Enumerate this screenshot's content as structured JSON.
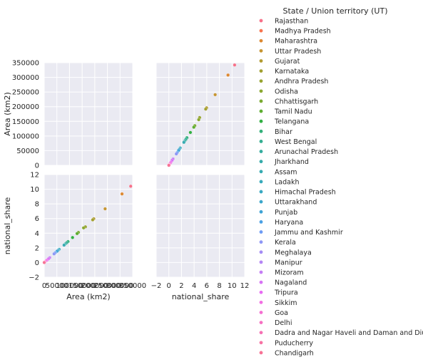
{
  "chart_data": {
    "type": "scatter",
    "kind": "pairplot",
    "variables": [
      "Area (km2)",
      "national_share"
    ],
    "diagonal_panels": "empty",
    "legend": {
      "title": "State / Union territory (UT)",
      "placement": "right"
    },
    "grid": true,
    "axes": {
      "Area (km2)": {
        "label": "Area (km2)",
        "range": [
          0,
          350000
        ],
        "ticks": [
          0,
          50000,
          100000,
          150000,
          200000,
          250000,
          300000,
          350000
        ],
        "tick_labels": [
          "0",
          "50000",
          "100000",
          "150000",
          "200000",
          "250000",
          "300000",
          "350000"
        ]
      },
      "national_share": {
        "label": "national_share",
        "range": [
          -2,
          12
        ],
        "ticks": [
          -2,
          0,
          2,
          4,
          6,
          8,
          10,
          12
        ],
        "tick_labels": [
          "−2",
          "0",
          "2",
          "4",
          "6",
          "8",
          "10",
          "12"
        ]
      }
    },
    "series": [
      {
        "name": "Rajasthan",
        "color": "#f77189",
        "area": 342239,
        "share": 10.41
      },
      {
        "name": "Madhya Pradesh",
        "color": "#f7754f",
        "area": 308252,
        "share": 9.38
      },
      {
        "name": "Maharashtra",
        "color": "#dc8932",
        "area": 307713,
        "share": 9.36
      },
      {
        "name": "Uttar Pradesh",
        "color": "#c69532",
        "area": 240928,
        "share": 7.33
      },
      {
        "name": "Gujarat",
        "color": "#b29b31",
        "area": 196024,
        "share": 5.97
      },
      {
        "name": "Karnataka",
        "color": "#a2a031",
        "area": 191791,
        "share": 5.83
      },
      {
        "name": "Andhra Pradesh",
        "color": "#97a431",
        "area": 162968,
        "share": 4.87
      },
      {
        "name": "Odisha",
        "color": "#8ba831",
        "area": 155707,
        "share": 4.73
      },
      {
        "name": "Chhattisgarh",
        "color": "#7aaa31",
        "area": 135191,
        "share": 4.11
      },
      {
        "name": "Tamil Nadu",
        "color": "#5eae31",
        "area": 130058,
        "share": 3.95
      },
      {
        "name": "Telangana",
        "color": "#32b043",
        "area": 112077,
        "share": 3.41
      },
      {
        "name": "Bihar",
        "color": "#33b07a",
        "area": 94163,
        "share": 2.86
      },
      {
        "name": "West Bengal",
        "color": "#34ae91",
        "area": 88752,
        "share": 2.7
      },
      {
        "name": "Arunachal Pradesh",
        "color": "#35ad9f",
        "area": 83743,
        "share": 2.54
      },
      {
        "name": "Jharkhand",
        "color": "#36abaa",
        "area": 79716,
        "share": 2.42
      },
      {
        "name": "Assam",
        "color": "#37abb2",
        "area": 78438,
        "share": 2.38
      },
      {
        "name": "Ladakh",
        "color": "#38aabb",
        "area": 59146,
        "share": 1.8
      },
      {
        "name": "Himachal Pradesh",
        "color": "#39a8c2",
        "area": 55673,
        "share": 1.7
      },
      {
        "name": "Uttarakhand",
        "color": "#3ba6cb",
        "area": 53483,
        "share": 1.63
      },
      {
        "name": "Punjab",
        "color": "#3ea3d5",
        "area": 50362,
        "share": 1.53
      },
      {
        "name": "Haryana",
        "color": "#4aa0e4",
        "area": 44212,
        "share": 1.35
      },
      {
        "name": "Jammu and Kashmir",
        "color": "#6e9bf4",
        "area": 42241,
        "share": 1.29
      },
      {
        "name": "Kerala",
        "color": "#8e97f5",
        "area": 38863,
        "share": 1.18
      },
      {
        "name": "Meghalaya",
        "color": "#a48cf4",
        "area": 22429,
        "share": 0.68
      },
      {
        "name": "Manipur",
        "color": "#b586f4",
        "area": 22327,
        "share": 0.68
      },
      {
        "name": "Mizoram",
        "color": "#c57ef4",
        "area": 21081,
        "share": 0.64
      },
      {
        "name": "Nagaland",
        "color": "#d774f4",
        "area": 16579,
        "share": 0.5
      },
      {
        "name": "Tripura",
        "color": "#e86cf3",
        "area": 10491,
        "share": 0.32
      },
      {
        "name": "Sikkim",
        "color": "#f26fe3",
        "area": 7096,
        "share": 0.22
      },
      {
        "name": "Goa",
        "color": "#f56fd2",
        "area": 3702,
        "share": 0.11
      },
      {
        "name": "Delhi",
        "color": "#f670c2",
        "area": 1484,
        "share": 0.05
      },
      {
        "name": "Dadra and Nagar Haveli and Daman and Diu",
        "color": "#f671b4",
        "area": 603,
        "share": 0.02
      },
      {
        "name": "Puducherry",
        "color": "#f772a4",
        "area": 479,
        "share": 0.01
      },
      {
        "name": "Chandigarh",
        "color": "#f77295",
        "area": 114,
        "share": 0.0
      }
    ]
  }
}
